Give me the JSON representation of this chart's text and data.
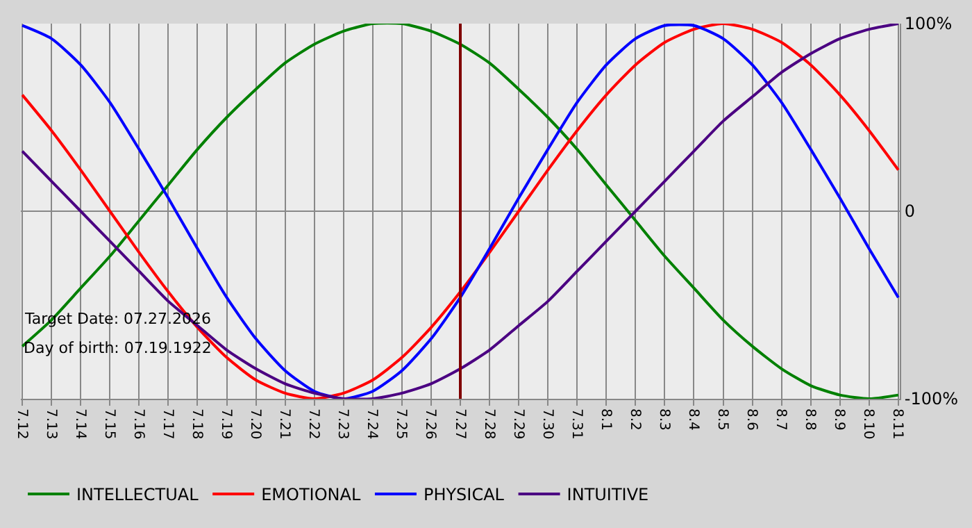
{
  "chart_data": {
    "type": "line",
    "categories": [
      "7.12",
      "7.13",
      "7.14",
      "7.15",
      "7.16",
      "7.17",
      "7.18",
      "7.19",
      "7.20",
      "7.21",
      "7.22",
      "7.23",
      "7.24",
      "7.25",
      "7.26",
      "7.27",
      "7.28",
      "7.29",
      "7.30",
      "7.31",
      "8.1",
      "8.2",
      "8.3",
      "8.4",
      "8.5",
      "8.6",
      "8.7",
      "8.8",
      "8.9",
      "8.10",
      "8.11"
    ],
    "series": [
      {
        "name": "INTELLECTUAL",
        "color": "#008000",
        "values": [
          -72,
          -58,
          -41,
          -24,
          -5,
          14,
          33,
          50,
          65,
          79,
          89,
          96,
          100,
          100,
          96,
          89,
          79,
          65,
          50,
          33,
          14,
          -5,
          -24,
          -41,
          -58,
          -72,
          -84,
          -93,
          -98,
          -100,
          -98
        ]
      },
      {
        "name": "EMOTIONAL",
        "color": "#ff0000",
        "values": [
          62,
          43,
          22,
          0,
          -22,
          -43,
          -62,
          -78,
          -90,
          -97,
          -100,
          -97,
          -90,
          -78,
          -62,
          -43,
          -22,
          0,
          22,
          43,
          62,
          78,
          90,
          97,
          100,
          97,
          90,
          78,
          62,
          43,
          22
        ]
      },
      {
        "name": "PHYSICAL",
        "color": "#0000ff",
        "values": [
          99,
          92,
          78,
          58,
          33,
          7,
          -20,
          -46,
          -68,
          -85,
          -96,
          -100,
          -96,
          -85,
          -68,
          -46,
          -20,
          7,
          33,
          58,
          78,
          92,
          99,
          99,
          92,
          78,
          58,
          33,
          7,
          -20,
          -46
        ]
      },
      {
        "name": "INTUITIVE",
        "color": "#4b0082",
        "values": [
          32,
          16,
          0,
          -16,
          -32,
          -48,
          -61,
          -74,
          -84,
          -92,
          -97,
          -100,
          -100,
          -97,
          -92,
          -84,
          -74,
          -61,
          -48,
          -32,
          -16,
          0,
          16,
          32,
          48,
          61,
          74,
          84,
          92,
          97,
          100
        ]
      }
    ],
    "ylim": [
      -100,
      100
    ],
    "yticks": [
      {
        "value": 100,
        "label": "100%"
      },
      0,
      {
        "value": -100,
        "label": "-100%"
      }
    ],
    "ref_lines": [
      {
        "axis": "x",
        "value": "7.27",
        "color": "#800000"
      }
    ],
    "annotations": [
      "Target Date: 07.27.2026",
      "Day of birth: 07.19.1922"
    ],
    "grid": true,
    "legend": "bottom",
    "marker": "none",
    "line_style": "solid"
  }
}
